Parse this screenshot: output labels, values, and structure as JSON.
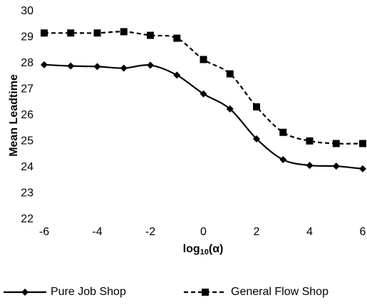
{
  "chart_data": {
    "type": "line",
    "y_label": "Mean Leadtime",
    "x_label": "log",
    "x_label_subscript": "10",
    "x_label_suffix": "(α)",
    "x": [
      -6,
      -5,
      -4,
      -3,
      -2,
      -1,
      0,
      1,
      2,
      3,
      4,
      5,
      6
    ],
    "series": [
      {
        "name": "Pure Job Shop",
        "color": "#000000",
        "marker": "diamond",
        "dash": false,
        "values": [
          27.95,
          27.9,
          27.88,
          27.82,
          27.93,
          27.55,
          26.83,
          26.25,
          25.1,
          24.3,
          24.08,
          24.05,
          23.95
        ]
      },
      {
        "name": "General Flow Shop",
        "color": "#000000",
        "marker": "square",
        "dash": true,
        "values": [
          29.17,
          29.17,
          29.17,
          29.22,
          29.08,
          28.97,
          28.15,
          27.6,
          26.33,
          25.35,
          25.02,
          24.92,
          24.92
        ]
      }
    ],
    "xlim": [
      -6,
      6
    ],
    "xticks": [
      -6,
      -4,
      -2,
      0,
      2,
      4,
      6
    ],
    "ylim": [
      22,
      30
    ],
    "yticks": [
      22,
      23,
      24,
      25,
      26,
      27,
      28,
      29,
      30
    ],
    "grid": false,
    "legend": "bottom"
  }
}
